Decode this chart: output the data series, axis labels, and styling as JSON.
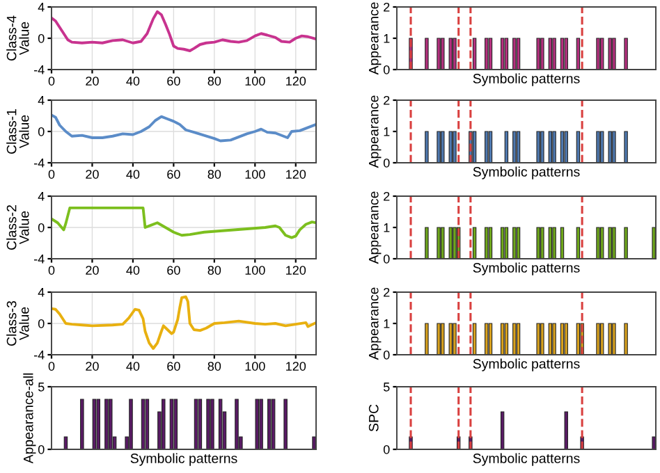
{
  "chart_data": [
    {
      "type": "line",
      "ylabel": "Class-4\nValue",
      "xlim": [
        0,
        130
      ],
      "xticks": [
        0,
        20,
        40,
        60,
        80,
        100,
        120
      ],
      "ylim": [
        -4,
        4
      ],
      "yticks": [
        -4,
        0,
        4
      ],
      "grid": true,
      "series": [
        {
          "color": "#c8338f",
          "x": [
            0,
            2,
            5,
            8,
            10,
            15,
            20,
            25,
            30,
            35,
            40,
            44,
            47,
            50,
            52,
            54,
            56,
            58,
            60,
            62,
            65,
            68,
            70,
            73,
            76,
            80,
            84,
            88,
            92,
            96,
            100,
            103,
            106,
            110,
            113,
            117,
            120,
            123,
            126,
            130
          ],
          "values": [
            2.6,
            2.2,
            1,
            -0.2,
            -0.5,
            -0.6,
            -0.5,
            -0.6,
            -0.3,
            -0.2,
            -0.6,
            -0.4,
            0.6,
            2.5,
            3.4,
            3,
            1.8,
            0.5,
            -1,
            -1.3,
            -1.4,
            -1.6,
            -1.3,
            -0.8,
            -0.6,
            -0.5,
            -0.2,
            -0.4,
            -0.5,
            -0.3,
            0.3,
            0.6,
            0.4,
            0.1,
            -0.4,
            -0.5,
            0,
            0.3,
            0.2,
            -0.1
          ]
        }
      ]
    },
    {
      "type": "bar",
      "ylabel": "Appearance",
      "xlabel": "Symbolic patterns",
      "ylim": [
        0,
        2
      ],
      "yticks": [
        0,
        1,
        2
      ],
      "tick_labels": "y",
      "categories": [
        null,
        null,
        null,
        null,
        null,
        null,
        null,
        null,
        null,
        null,
        null,
        null,
        null,
        null,
        null,
        null,
        null,
        null,
        null,
        null,
        null,
        null,
        null,
        null,
        null,
        null,
        null,
        null,
        null,
        null,
        null,
        null,
        null,
        null,
        null,
        null,
        null,
        null,
        null,
        null,
        null,
        null,
        null,
        null,
        null,
        null,
        null,
        null,
        null,
        null,
        null,
        null,
        null,
        null,
        null,
        null,
        null,
        null,
        null,
        null,
        null,
        null,
        null,
        null,
        null
      ],
      "series": [
        {
          "color": "#b5307f",
          "values": [
            null,
            null,
            null,
            1,
            null,
            null,
            null,
            1,
            null,
            null,
            1,
            1,
            null,
            1,
            1,
            null,
            null,
            null,
            null,
            1,
            null,
            null,
            1,
            1,
            null,
            null,
            1,
            1,
            null,
            1,
            1,
            null,
            null,
            null,
            null,
            1,
            1,
            null,
            1,
            1,
            null,
            1,
            1,
            null,
            null,
            1,
            null,
            null,
            null,
            null,
            1,
            1,
            null,
            1,
            1,
            null,
            null,
            1,
            null,
            null,
            null,
            null,
            null,
            null,
            null
          ]
        }
      ]
    },
    {
      "type": "line",
      "ylabel": "Class-1\nValue",
      "xlim": [
        0,
        130
      ],
      "xticks": [
        0,
        20,
        40,
        60,
        80,
        100,
        120
      ],
      "ylim": [
        -4,
        4
      ],
      "yticks": [
        -4,
        0,
        4
      ],
      "grid": true,
      "series": [
        {
          "color": "#5b8cc8",
          "x": [
            0,
            2,
            4,
            7,
            10,
            15,
            20,
            25,
            30,
            35,
            40,
            44,
            48,
            51,
            54,
            57,
            60,
            63,
            66,
            70,
            75,
            80,
            83,
            88,
            92,
            96,
            100,
            103,
            106,
            110,
            114,
            116,
            118,
            122,
            126,
            130
          ],
          "values": [
            2.1,
            1.8,
            0.8,
            0,
            -0.6,
            -0.5,
            -0.8,
            -0.8,
            -0.6,
            -0.3,
            -0.4,
            0,
            0.6,
            1.4,
            1.9,
            1.6,
            1.3,
            0.9,
            0.2,
            -0.1,
            -0.5,
            -0.9,
            -1.2,
            -1.1,
            -0.7,
            -0.3,
            0,
            0.3,
            -0.1,
            -0.2,
            -0.6,
            -0.8,
            0,
            0.1,
            0.5,
            0.9
          ]
        }
      ]
    },
    {
      "type": "bar",
      "ylabel": "Appearance",
      "xlabel": "Symbolic patterns",
      "ylim": [
        0,
        2
      ],
      "yticks": [
        0,
        1,
        2
      ],
      "tick_labels": "y",
      "categories": [
        null,
        null,
        null,
        null,
        null,
        null,
        null,
        null,
        null,
        null,
        null,
        null,
        null,
        null,
        null,
        null,
        null,
        null,
        null,
        null,
        null,
        null,
        null,
        null,
        null,
        null,
        null,
        null,
        null,
        null,
        null,
        null,
        null,
        null,
        null,
        null,
        null,
        null,
        null,
        null,
        null,
        null,
        null,
        null,
        null,
        null,
        null,
        null,
        null,
        null,
        null,
        null,
        null,
        null,
        null,
        null,
        null,
        null,
        null,
        null,
        null,
        null,
        null,
        null,
        null
      ],
      "series": [
        {
          "color": "#4f79b0",
          "values": [
            null,
            null,
            null,
            null,
            null,
            null,
            null,
            1,
            null,
            null,
            1,
            1,
            null,
            1,
            1,
            null,
            null,
            null,
            1,
            1,
            null,
            null,
            1,
            1,
            null,
            null,
            null,
            1,
            null,
            1,
            1,
            null,
            null,
            null,
            null,
            1,
            1,
            null,
            1,
            1,
            null,
            1,
            1,
            null,
            null,
            1,
            null,
            null,
            null,
            null,
            1,
            1,
            null,
            1,
            1,
            null,
            null,
            1,
            null,
            null,
            null,
            null,
            null,
            null,
            null
          ]
        }
      ]
    },
    {
      "type": "line",
      "ylabel": "Class-2\nValue",
      "xlim": [
        0,
        130
      ],
      "xticks": [
        0,
        20,
        40,
        60,
        80,
        100,
        120
      ],
      "ylim": [
        -4,
        4
      ],
      "yticks": [
        -4,
        0,
        4
      ],
      "grid": true,
      "series": [
        {
          "color": "#7cbf1e",
          "x": [
            0,
            3,
            6,
            7,
            9,
            45,
            46,
            49,
            52,
            56,
            60,
            64,
            68,
            75,
            85,
            95,
            105,
            110,
            112,
            115,
            118,
            120,
            122,
            125,
            128,
            130
          ],
          "values": [
            1.1,
            0.6,
            -0.3,
            0.5,
            2.5,
            2.5,
            0,
            0.3,
            0.6,
            0,
            -0.6,
            -1,
            -0.9,
            -0.6,
            -0.4,
            -0.2,
            0,
            0.2,
            0,
            -1,
            -1.3,
            -1.1,
            -0.3,
            0.4,
            0.7,
            0.6
          ]
        }
      ]
    },
    {
      "type": "bar",
      "ylabel": "Appearance",
      "xlabel": "Symbolic patterns",
      "ylim": [
        0,
        2
      ],
      "yticks": [
        0,
        1,
        2
      ],
      "tick_labels": "y",
      "categories": [
        null,
        null,
        null,
        null,
        null,
        null,
        null,
        null,
        null,
        null,
        null,
        null,
        null,
        null,
        null,
        null,
        null,
        null,
        null,
        null,
        null,
        null,
        null,
        null,
        null,
        null,
        null,
        null,
        null,
        null,
        null,
        null,
        null,
        null,
        null,
        null,
        null,
        null,
        null,
        null,
        null,
        null,
        null,
        null,
        null,
        null,
        null,
        null,
        null,
        null,
        null,
        null,
        null,
        null,
        null,
        null,
        null,
        null,
        null,
        null,
        null,
        null,
        null,
        null,
        null
      ],
      "series": [
        {
          "color": "#6fa81c",
          "values": [
            null,
            null,
            null,
            null,
            null,
            null,
            null,
            1,
            null,
            null,
            1,
            1,
            null,
            1,
            1,
            1,
            null,
            null,
            null,
            1,
            null,
            null,
            1,
            1,
            null,
            null,
            1,
            1,
            null,
            1,
            1,
            null,
            null,
            null,
            null,
            1,
            1,
            null,
            1,
            1,
            null,
            1,
            null,
            null,
            null,
            1,
            null,
            null,
            null,
            null,
            1,
            1,
            null,
            1,
            1,
            null,
            null,
            1,
            null,
            null,
            null,
            null,
            null,
            null,
            1
          ]
        }
      ]
    },
    {
      "type": "line",
      "ylabel": "Class-3\nValue",
      "xlim": [
        0,
        130
      ],
      "xticks": [
        0,
        20,
        40,
        60,
        80,
        100,
        120
      ],
      "ylim": [
        -4,
        4
      ],
      "yticks": [
        -4,
        0,
        4
      ],
      "grid": true,
      "series": [
        {
          "color": "#e8b010",
          "x": [
            0,
            2,
            4,
            7,
            10,
            15,
            20,
            30,
            35,
            38,
            41,
            43,
            45,
            46,
            48,
            50,
            52,
            54,
            55,
            57,
            59,
            60,
            62,
            63,
            64,
            66,
            67,
            68,
            70,
            73,
            76,
            80,
            85,
            92,
            100,
            105,
            110,
            115,
            120,
            125,
            126,
            130
          ],
          "values": [
            1.9,
            1.8,
            1.2,
            0,
            -0.1,
            -0.2,
            -0.3,
            -0.2,
            -0.1,
            0.7,
            1.8,
            1.7,
            0.6,
            -1,
            -2.5,
            -3.2,
            -2.5,
            -1,
            -0.3,
            -0.8,
            -1.3,
            -1.1,
            0.5,
            2,
            3.3,
            3.4,
            2.8,
            0,
            -0.8,
            -0.9,
            -0.6,
            0,
            0.1,
            0.3,
            0,
            -0.1,
            0,
            -0.3,
            -0.1,
            0.1,
            -0.4,
            0.1
          ]
        }
      ]
    },
    {
      "type": "bar",
      "ylabel": "Appearance",
      "xlabel": "Symbolic patterns",
      "ylim": [
        0,
        2
      ],
      "yticks": [
        0,
        1,
        2
      ],
      "tick_labels": "y",
      "categories": [
        null,
        null,
        null,
        null,
        null,
        null,
        null,
        null,
        null,
        null,
        null,
        null,
        null,
        null,
        null,
        null,
        null,
        null,
        null,
        null,
        null,
        null,
        null,
        null,
        null,
        null,
        null,
        null,
        null,
        null,
        null,
        null,
        null,
        null,
        null,
        null,
        null,
        null,
        null,
        null,
        null,
        null,
        null,
        null,
        null,
        null,
        null,
        null,
        null,
        null,
        null,
        null,
        null,
        null,
        null,
        null,
        null,
        null,
        null,
        null,
        null,
        null,
        null,
        null,
        null
      ],
      "series": [
        {
          "color": "#d9a21e",
          "values": [
            null,
            null,
            null,
            null,
            null,
            null,
            null,
            1,
            null,
            null,
            1,
            1,
            null,
            1,
            1,
            null,
            null,
            null,
            null,
            1,
            null,
            null,
            1,
            1,
            null,
            null,
            1,
            1,
            null,
            1,
            1,
            null,
            null,
            null,
            null,
            1,
            1,
            null,
            1,
            1,
            null,
            1,
            1,
            null,
            null,
            1,
            1,
            null,
            null,
            null,
            1,
            1,
            null,
            1,
            1,
            null,
            null,
            1,
            null,
            null,
            null,
            null,
            null,
            null,
            null
          ]
        }
      ]
    },
    {
      "type": "bar",
      "ylabel": "Appearance-all",
      "xlabel": "Symbolic patterns",
      "ylim": [
        0,
        5
      ],
      "yticks": [
        0,
        5
      ],
      "tick_labels": "y",
      "categories": [
        null,
        null,
        null,
        null,
        null,
        null,
        null,
        null,
        null,
        null,
        null,
        null,
        null,
        null,
        null,
        null,
        null,
        null,
        null,
        null,
        null,
        null,
        null,
        null,
        null,
        null,
        null,
        null,
        null,
        null,
        null,
        null,
        null,
        null,
        null,
        null,
        null,
        null,
        null,
        null,
        null,
        null,
        null,
        null,
        null,
        null,
        null,
        null,
        null,
        null,
        null,
        null,
        null,
        null,
        null,
        null,
        null,
        null,
        null,
        null,
        null,
        null,
        null,
        null,
        null
      ],
      "series": [
        {
          "color": "#5a1a66",
          "values": [
            null,
            null,
            null,
            1,
            null,
            null,
            null,
            4,
            null,
            null,
            4,
            4,
            null,
            4,
            4,
            1,
            null,
            null,
            1,
            4,
            null,
            null,
            4,
            4,
            null,
            null,
            3,
            4,
            null,
            4,
            4,
            null,
            null,
            null,
            null,
            4,
            4,
            null,
            4,
            4,
            null,
            4,
            3,
            null,
            null,
            4,
            1,
            null,
            null,
            null,
            4,
            4,
            null,
            4,
            4,
            null,
            null,
            4,
            null,
            null,
            null,
            null,
            null,
            null,
            1
          ]
        }
      ]
    },
    {
      "type": "bar",
      "ylabel": "SPC",
      "xlabel": "Symbolic patterns",
      "ylim": [
        0,
        5
      ],
      "yticks": [
        0,
        5
      ],
      "tick_labels": "y",
      "categories": [
        null,
        null,
        null,
        null,
        null,
        null,
        null,
        null,
        null,
        null,
        null,
        null,
        null,
        null,
        null,
        null,
        null,
        null,
        null,
        null,
        null,
        null,
        null,
        null,
        null,
        null,
        null,
        null,
        null,
        null,
        null,
        null,
        null,
        null,
        null,
        null,
        null,
        null,
        null,
        null,
        null,
        null,
        null,
        null,
        null,
        null,
        null,
        null,
        null,
        null,
        null,
        null,
        null,
        null,
        null,
        null,
        null,
        null,
        null,
        null,
        null,
        null,
        null,
        null,
        null
      ],
      "series": [
        {
          "color": "#5a1a66",
          "values": [
            null,
            null,
            null,
            1,
            null,
            null,
            null,
            null,
            null,
            null,
            null,
            null,
            null,
            null,
            null,
            1,
            null,
            null,
            1,
            null,
            null,
            null,
            null,
            null,
            null,
            null,
            3,
            null,
            null,
            null,
            null,
            null,
            null,
            null,
            null,
            null,
            null,
            null,
            null,
            null,
            null,
            null,
            3,
            null,
            null,
            null,
            1,
            null,
            null,
            null,
            null,
            null,
            null,
            null,
            null,
            null,
            null,
            null,
            null,
            null,
            null,
            null,
            null,
            null,
            1
          ]
        }
      ]
    }
  ]
}
